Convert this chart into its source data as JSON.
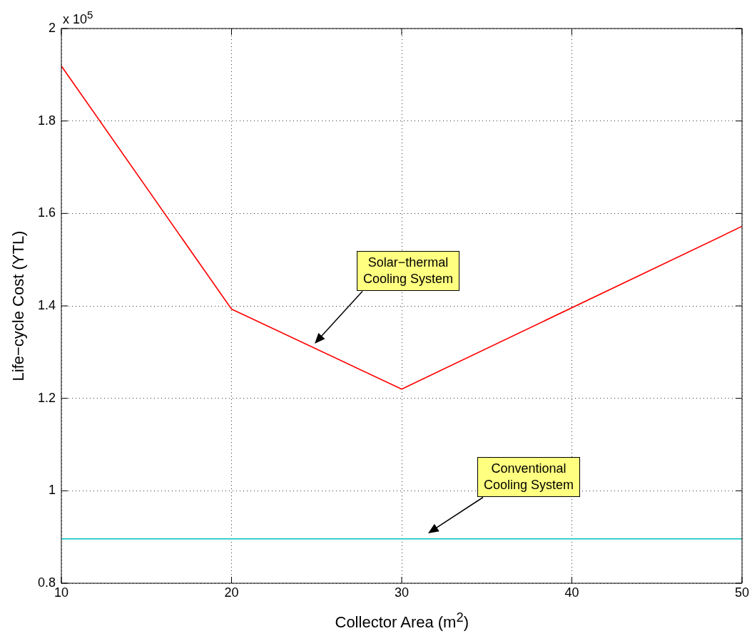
{
  "chart_data": {
    "type": "line",
    "xlabel": "Collector Area (m$^{2}$)",
    "ylabel": "Life−cycle Cost (YTL)",
    "x": [
      10,
      20,
      30,
      50
    ],
    "series": [
      {
        "color": "#ff0000",
        "values": [
          1.919,
          1.393,
          1.22,
          1.572
        ]
      },
      {
        "color": "#00bfbf",
        "x": [
          10,
          50
        ],
        "values": [
          0.896,
          0.896
        ]
      }
    ],
    "xlim": [
      10,
      50
    ],
    "xticks": [
      10,
      20,
      30,
      40,
      50
    ],
    "ylim": [
      0.8,
      2
    ],
    "yticks": [
      0.8,
      1,
      1.2,
      1.4,
      1.6,
      1.8,
      2
    ],
    "grid": true,
    "legend": false,
    "marker": "none",
    "line_style": "solid",
    "annotations": [
      "x 10$^{5}$",
      "Solar−thermal\nCooling System",
      "Conventional\nCooling System"
    ]
  }
}
